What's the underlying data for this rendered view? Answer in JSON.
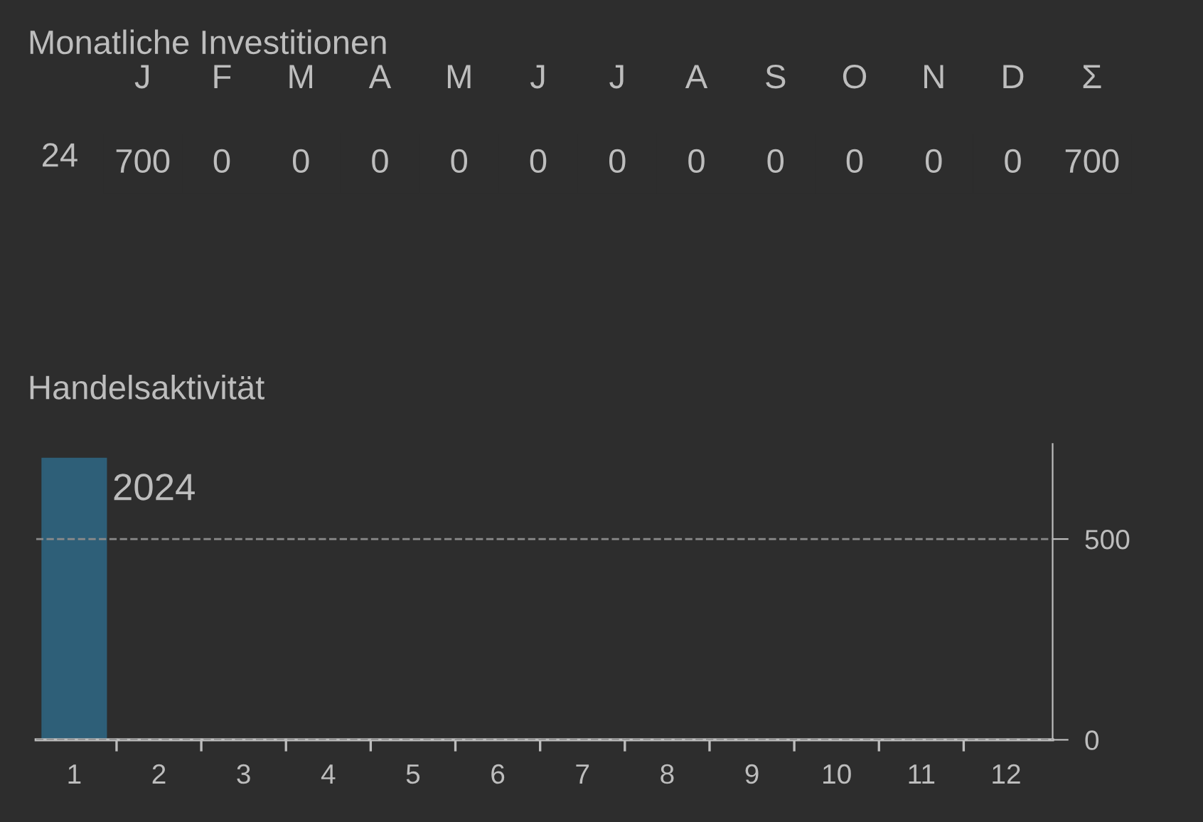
{
  "chart_data": [
    {
      "type": "heatmap",
      "data_labels": true,
      "title": "Monatliche Investitionen",
      "categories": [
        "J",
        "F",
        "M",
        "A",
        "M",
        "J",
        "J",
        "A",
        "S",
        "O",
        "N",
        "D",
        "Σ"
      ],
      "y_categories": [
        "24"
      ],
      "cells": [
        [
          700,
          0,
          0,
          0,
          0,
          0,
          0,
          0,
          0,
          0,
          0,
          0,
          700
        ]
      ]
    },
    {
      "type": "bar",
      "title": "Handelsaktivität",
      "categories": [
        "1",
        "2",
        "3",
        "4",
        "5",
        "6",
        "7",
        "8",
        "9",
        "10",
        "11",
        "12"
      ],
      "series": [
        {
          "name": "2024",
          "color": "#2e5f78",
          "values": [
            700,
            0,
            0,
            0,
            0,
            0,
            0,
            0,
            0,
            0,
            0,
            0
          ]
        }
      ],
      "ylim": [
        0,
        737
      ],
      "yticks": [
        0,
        500
      ],
      "grid": "y",
      "line_style": "dashed"
    }
  ]
}
